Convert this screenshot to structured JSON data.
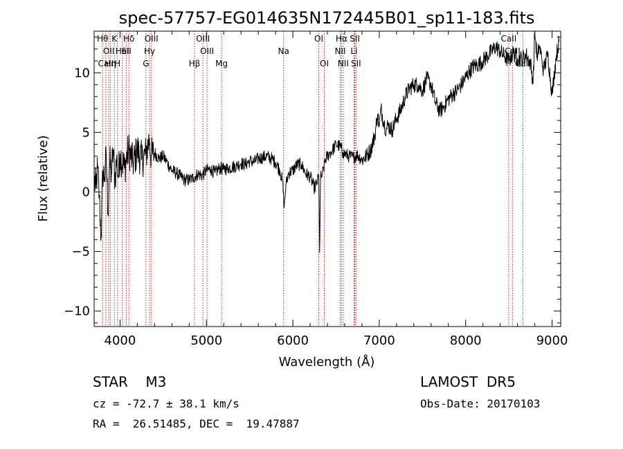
{
  "chart_data": {
    "type": "line",
    "title": "spec-57757-EG014635N172445B01_sp11-183.fits",
    "xlabel": "Wavelength (Å)",
    "ylabel": "Flux (relative)",
    "xlim": [
      3700,
      9100
    ],
    "ylim": [
      -11.3,
      13.5
    ],
    "xticks": [
      4000,
      5000,
      6000,
      7000,
      8000,
      9000
    ],
    "yticks": [
      -10,
      -5,
      0,
      5,
      10
    ],
    "grid": false,
    "colors": {
      "spectrum": "#000000",
      "lines": "#b22222"
    },
    "series": [
      {
        "x": [
          3700,
          3720,
          3740,
          3760,
          3780,
          3800,
          3820,
          3840,
          3860,
          3880,
          3900,
          3920,
          3940,
          3960,
          3980,
          4000,
          4050,
          4100,
          4150,
          4200,
          4250,
          4300,
          4340,
          4360,
          4400,
          4450,
          4500,
          4550,
          4600,
          4650,
          4700,
          4750,
          4800,
          4850,
          4900,
          4950,
          5000,
          5050,
          5100,
          5150,
          5200,
          5250,
          5300,
          5350,
          5400,
          5450,
          5500,
          5550,
          5600,
          5650,
          5700,
          5750,
          5800,
          5850,
          5880,
          5900,
          5920,
          5950,
          6000,
          6050,
          6100,
          6150,
          6200,
          6250,
          6280,
          6300,
          6310,
          6320,
          6340,
          6380,
          6420,
          6460,
          6500,
          6550,
          6580,
          6600,
          6650,
          6700,
          6750,
          6800,
          6850,
          6900,
          6950,
          6980,
          7000,
          7020,
          7050,
          7080,
          7100,
          7150,
          7200,
          7250,
          7300,
          7350,
          7400,
          7450,
          7500,
          7550,
          7600,
          7650,
          7700,
          7750,
          7800,
          7850,
          7900,
          7950,
          8000,
          8050,
          8100,
          8150,
          8200,
          8250,
          8300,
          8350,
          8400,
          8450,
          8500,
          8550,
          8600,
          8650,
          8700,
          8750,
          8780,
          8800,
          8830,
          8850,
          8880,
          8900,
          8950,
          9000,
          9050,
          9080
        ],
        "y": [
          1.0,
          0.3,
          2.0,
          -0.5,
          -3.9,
          1.8,
          1.2,
          3.0,
          -1.8,
          2.5,
          1.5,
          3.5,
          1.0,
          2.8,
          1.2,
          3.2,
          2.0,
          3.6,
          2.4,
          3.5,
          2.7,
          3.2,
          4.5,
          3.0,
          3.3,
          2.8,
          3.0,
          2.4,
          1.8,
          1.6,
          1.3,
          1.0,
          1.0,
          1.2,
          1.5,
          1.4,
          1.8,
          1.9,
          1.6,
          2.0,
          1.9,
          2.0,
          2.1,
          2.2,
          2.4,
          2.3,
          2.6,
          2.5,
          2.8,
          2.9,
          3.0,
          2.8,
          2.5,
          1.8,
          0.9,
          -1.3,
          0.6,
          1.6,
          1.8,
          2.3,
          2.3,
          1.5,
          1.3,
          0.3,
          0.8,
          1.3,
          -5.1,
          1.2,
          1.4,
          2.8,
          3.2,
          3.5,
          4.0,
          3.8,
          3.3,
          3.2,
          3.0,
          2.9,
          3.1,
          2.7,
          3.0,
          3.5,
          4.8,
          6.5,
          5.5,
          7.0,
          5.9,
          5.2,
          5.6,
          5.2,
          6.2,
          6.9,
          8.0,
          8.7,
          9.0,
          9.0,
          8.5,
          9.5,
          9.0,
          7.5,
          6.8,
          7.2,
          7.8,
          8.2,
          8.5,
          9.0,
          9.6,
          10.2,
          10.6,
          10.7,
          11.0,
          11.4,
          11.8,
          12.2,
          11.8,
          11.4,
          11.0,
          11.7,
          11.2,
          11.2,
          11.5,
          10.8,
          9.2,
          13.5,
          11.0,
          12.3,
          11.3,
          10.2,
          11.6,
          8.2,
          11.5,
          12.6
        ]
      }
    ],
    "lines": [
      {
        "w": 3798,
        "label": "Hθ",
        "row": 0
      },
      {
        "w": 3835,
        "label": "CaII",
        "row": 2
      },
      {
        "w": 3869,
        "label": "OII",
        "row": 1
      },
      {
        "w": 3889,
        "label": "Hη",
        "row": 2
      },
      {
        "w": 3934,
        "label": "K",
        "row": 0
      },
      {
        "w": 3970,
        "label": "H",
        "row": 2
      },
      {
        "w": 4026,
        "label": "HeI",
        "row": 1
      },
      {
        "w": 4072,
        "label": "SII",
        "row": 1
      },
      {
        "w": 4102,
        "label": "Hδ",
        "row": 0
      },
      {
        "w": 4300,
        "label": "G",
        "row": 2
      },
      {
        "w": 4341,
        "label": "Hγ",
        "row": 1
      },
      {
        "w": 4363,
        "label": "OIII",
        "row": 0
      },
      {
        "w": 4861,
        "label": "Hβ",
        "row": 2
      },
      {
        "w": 4959,
        "label": "OIII",
        "row": 0
      },
      {
        "w": 5007,
        "label": "OIII",
        "row": 1
      },
      {
        "w": 5175,
        "label": "Mg",
        "row": 2
      },
      {
        "w": 5893,
        "label": "Na",
        "row": 1
      },
      {
        "w": 6300,
        "label": "OI",
        "row": 0
      },
      {
        "w": 6364,
        "label": "OI",
        "row": 2
      },
      {
        "w": 6548,
        "label": "NII",
        "row": 1
      },
      {
        "w": 6563,
        "label": "Hα",
        "row": 0
      },
      {
        "w": 6583,
        "label": "NII",
        "row": 2
      },
      {
        "w": 6708,
        "label": "Li",
        "row": 1
      },
      {
        "w": 6717,
        "label": "SII",
        "row": 0
      },
      {
        "w": 6731,
        "label": "SII",
        "row": 2
      },
      {
        "w": 8498,
        "label": "CaII",
        "row": 0
      },
      {
        "w": 8542,
        "label": "CaII",
        "row": 1
      },
      {
        "w": 8662,
        "label": "CaII",
        "row": 2
      }
    ]
  },
  "info": {
    "object": "STAR    M3",
    "survey": "LAMOST  DR5",
    "cz": "cz = -72.7 ± 38.1 km/s",
    "obs_date": "Obs-Date: 20170103",
    "coords": "RA =  26.51485, DEC =  19.47887"
  }
}
